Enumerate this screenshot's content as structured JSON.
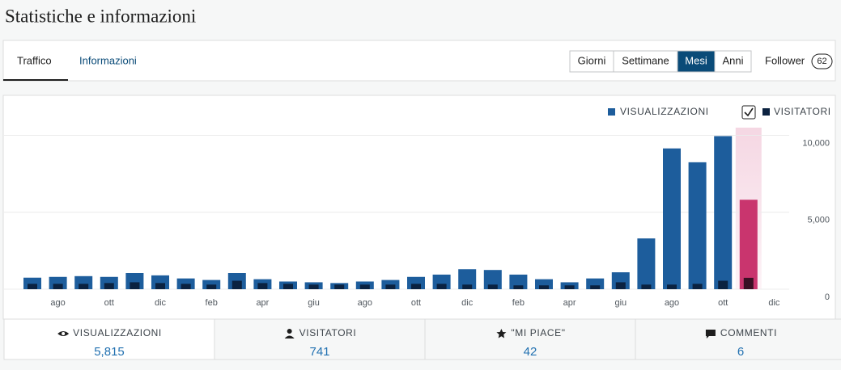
{
  "header": {
    "title": "Statistiche e informazioni"
  },
  "tabs": [
    "Traffico",
    "Informazioni"
  ],
  "periods": {
    "options": [
      "Giorni",
      "Settimane",
      "Mesi",
      "Anni"
    ],
    "active": "Mesi"
  },
  "follower": {
    "label": "Follower",
    "count": 62
  },
  "chart_data": {
    "type": "bar",
    "categories": [
      null,
      "ago",
      null,
      "ott",
      null,
      "dic",
      null,
      "feb",
      null,
      "apr",
      null,
      "giu",
      null,
      "ago",
      null,
      "ott",
      null,
      "dic",
      null,
      "feb",
      null,
      "apr",
      null,
      "giu",
      null,
      "ago",
      null,
      "ott",
      null,
      "dic"
    ],
    "series": [
      {
        "name": "VISUALIZZAZIONI",
        "color": "#1d5d9c",
        "highlight_color": "#c9356e",
        "values": [
          750,
          800,
          850,
          800,
          1050,
          900,
          700,
          600,
          1050,
          650,
          500,
          450,
          400,
          500,
          600,
          800,
          950,
          1300,
          1250,
          950,
          650,
          450,
          700,
          1100,
          3300,
          9150,
          8250,
          9950,
          5815,
          null
        ]
      },
      {
        "name": "VISITATORI",
        "color": "#0b2240",
        "highlight_color": "#3a1024",
        "values": [
          350,
          350,
          350,
          400,
          450,
          400,
          350,
          300,
          550,
          400,
          350,
          300,
          300,
          300,
          300,
          350,
          350,
          300,
          300,
          250,
          250,
          250,
          250,
          450,
          300,
          300,
          350,
          550,
          741,
          null
        ]
      }
    ],
    "highlight_index": 28,
    "ylim": [
      0,
      10500
    ],
    "yticks": [
      0,
      {
        "value": 5000,
        "label": "5,000"
      },
      {
        "value": 10000,
        "label": "10,000"
      }
    ],
    "grid": true
  },
  "summary": [
    {
      "label": "VISUALIZZAZIONI",
      "value": "5,815"
    },
    {
      "label": "VISITATORI",
      "value": "741"
    },
    {
      "label": "\"MI PIACE\"",
      "value": "42"
    },
    {
      "label": "COMMENTI",
      "value": "6"
    }
  ]
}
